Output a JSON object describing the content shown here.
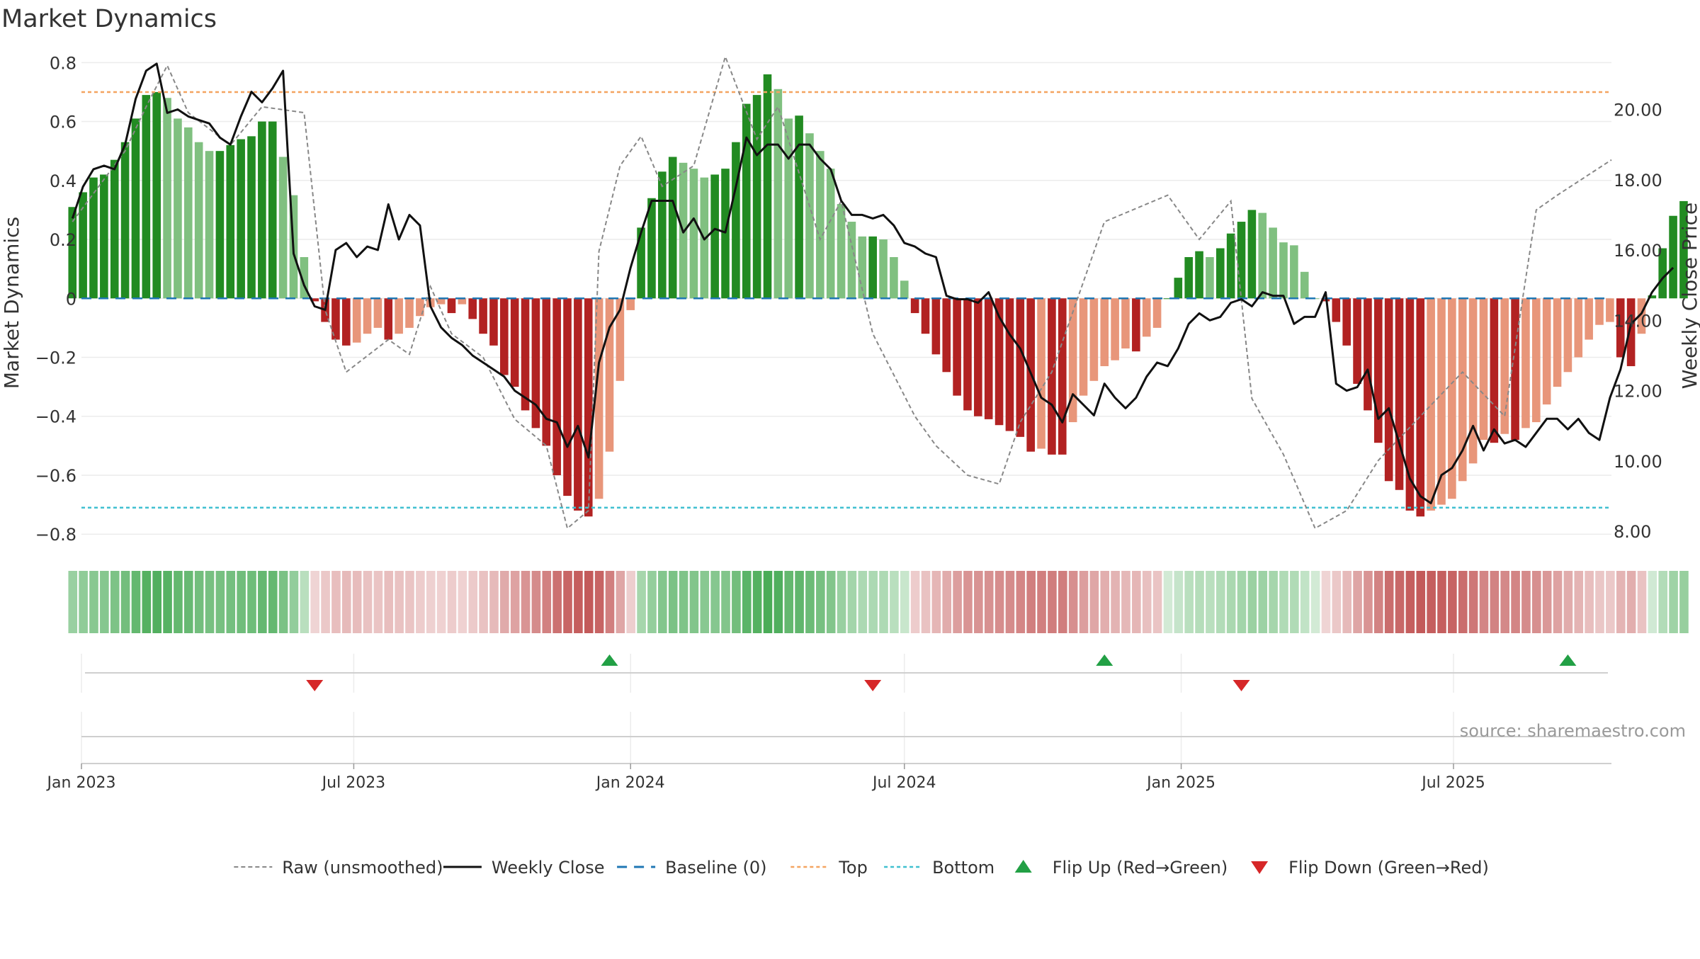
{
  "chart_data": {
    "type": "bar",
    "title": "Market Dynamics",
    "ylabel_left": "Market Dynamics",
    "ylabel_right": "Weekly Close Price",
    "ylim_left": [
      -0.85,
      0.82
    ],
    "ylim_right": [
      7.5,
      21.5
    ],
    "left_ticks": [
      {
        "value": 0.8,
        "label": "0.8"
      },
      {
        "value": 0.6,
        "label": "0.6"
      },
      {
        "value": 0.4,
        "label": "0.4"
      },
      {
        "value": 0.2,
        "label": "0.2"
      },
      {
        "value": 0,
        "label": "0"
      },
      {
        "value": -0.2,
        "label": "−0.2"
      },
      {
        "value": -0.4,
        "label": "−0.4"
      },
      {
        "value": -0.6,
        "label": "−0.6"
      },
      {
        "value": -0.8,
        "label": "−0.8"
      }
    ],
    "right_ticks": [
      {
        "value": 20,
        "label": "20.00"
      },
      {
        "value": 18,
        "label": "18.00"
      },
      {
        "value": 16,
        "label": "16.00"
      },
      {
        "value": 14,
        "label": "14.00"
      },
      {
        "value": 12,
        "label": "12.00"
      },
      {
        "value": 10,
        "label": "10.00"
      },
      {
        "value": 8,
        "label": "8.00"
      }
    ],
    "x_start": "2023-01-01",
    "x_end": "2025-10-14",
    "x_ticks": [
      {
        "date": "2023-01-01",
        "label": "Jan 2023"
      },
      {
        "date": "2023-07-01",
        "label": "Jul 2023"
      },
      {
        "date": "2024-01-01",
        "label": "Jan 2024"
      },
      {
        "date": "2024-07-01",
        "label": "Jul 2024"
      },
      {
        "date": "2025-01-01",
        "label": "Jan 2025"
      },
      {
        "date": "2025-07-01",
        "label": "Jul 2025"
      }
    ],
    "first_week": "2022-12-26",
    "top_threshold": 0.7,
    "bottom_threshold": -0.71,
    "baseline": 0,
    "bars": [
      0.31,
      0.36,
      0.41,
      0.42,
      0.47,
      0.53,
      0.61,
      0.69,
      0.7,
      0.68,
      0.61,
      0.58,
      0.53,
      0.5,
      0.5,
      0.52,
      0.54,
      0.55,
      0.6,
      0.6,
      0.48,
      0.35,
      0.14,
      -0.01,
      -0.08,
      -0.14,
      -0.16,
      -0.15,
      -0.12,
      -0.1,
      -0.14,
      -0.12,
      -0.1,
      -0.06,
      -0.03,
      -0.02,
      -0.05,
      -0.02,
      -0.07,
      -0.12,
      -0.16,
      -0.26,
      -0.3,
      -0.38,
      -0.44,
      -0.5,
      -0.6,
      -0.67,
      -0.72,
      -0.74,
      -0.68,
      -0.52,
      -0.28,
      -0.04,
      0.24,
      0.34,
      0.43,
      0.48,
      0.46,
      0.44,
      0.41,
      0.42,
      0.44,
      0.53,
      0.66,
      0.69,
      0.76,
      0.71,
      0.61,
      0.62,
      0.56,
      0.5,
      0.44,
      0.32,
      0.26,
      0.21,
      0.21,
      0.2,
      0.14,
      0.06,
      -0.05,
      -0.12,
      -0.19,
      -0.25,
      -0.33,
      -0.38,
      -0.4,
      -0.41,
      -0.43,
      -0.45,
      -0.47,
      -0.52,
      -0.51,
      -0.53,
      -0.53,
      -0.42,
      -0.33,
      -0.28,
      -0.23,
      -0.21,
      -0.17,
      -0.18,
      -0.13,
      -0.1,
      -0.0,
      0.07,
      0.14,
      0.16,
      0.14,
      0.17,
      0.22,
      0.26,
      0.3,
      0.29,
      0.24,
      0.19,
      0.18,
      0.09,
      0.0,
      -0.01,
      -0.08,
      -0.16,
      -0.29,
      -0.38,
      -0.49,
      -0.62,
      -0.65,
      -0.72,
      -0.74,
      -0.72,
      -0.7,
      -0.68,
      -0.62,
      -0.56,
      -0.48,
      -0.49,
      -0.46,
      -0.48,
      -0.44,
      -0.42,
      -0.36,
      -0.3,
      -0.25,
      -0.2,
      -0.14,
      -0.09,
      -0.08,
      -0.2,
      -0.23,
      -0.12,
      0.01,
      0.17,
      0.28,
      0.33
    ],
    "close": [
      16.9,
      17.8,
      18.3,
      18.4,
      18.3,
      19.0,
      20.3,
      21.1,
      21.3,
      19.9,
      20.0,
      19.8,
      19.7,
      19.6,
      19.2,
      19.0,
      19.8,
      20.5,
      20.2,
      20.6,
      21.1,
      15.9,
      15.0,
      14.4,
      14.3,
      16.0,
      16.2,
      15.8,
      16.1,
      16.0,
      17.3,
      16.3,
      17.0,
      16.7,
      14.4,
      13.8,
      13.5,
      13.3,
      13.0,
      12.8,
      12.6,
      12.4,
      12.0,
      11.8,
      11.6,
      11.2,
      11.1,
      10.4,
      11.0,
      10.1,
      12.8,
      13.8,
      14.3,
      15.5,
      16.5,
      17.4,
      17.4,
      17.4,
      16.5,
      16.9,
      16.3,
      16.6,
      16.5,
      17.8,
      19.2,
      18.7,
      19.0,
      19.0,
      18.6,
      19.0,
      19.0,
      18.6,
      18.3,
      17.4,
      17.0,
      17.0,
      16.9,
      17.0,
      16.7,
      16.2,
      16.1,
      15.9,
      15.8,
      14.7,
      14.6,
      14.6,
      14.5,
      14.8,
      14.1,
      13.6,
      13.2,
      12.5,
      11.8,
      11.6,
      11.1,
      11.9,
      11.6,
      11.3,
      12.2,
      11.8,
      11.5,
      11.8,
      12.4,
      12.8,
      12.7,
      13.2,
      13.9,
      14.2,
      14.0,
      14.1,
      14.5,
      14.6,
      14.4,
      14.8,
      14.7,
      14.7,
      13.9,
      14.1,
      14.1,
      14.8,
      12.2,
      12.0,
      12.1,
      12.6,
      11.2,
      11.5,
      10.5,
      9.5,
      9.0,
      8.8,
      9.6,
      9.8,
      10.3,
      11.0,
      10.3,
      10.9,
      10.5,
      10.6,
      10.4,
      10.8,
      11.2,
      11.2,
      10.9,
      11.2,
      10.8,
      10.6,
      11.8,
      12.6,
      13.9,
      14.2,
      14.8,
      15.2,
      15.5
    ],
    "raw_points": [
      {
        "date": "2022-12-26",
        "value": 0.26
      },
      {
        "date": "2023-01-30",
        "value": 0.5
      },
      {
        "date": "2023-02-13",
        "value": 0.65
      },
      {
        "date": "2023-02-27",
        "value": 0.79
      },
      {
        "date": "2023-03-13",
        "value": 0.63
      },
      {
        "date": "2023-04-10",
        "value": 0.52
      },
      {
        "date": "2023-05-01",
        "value": 0.65
      },
      {
        "date": "2023-05-29",
        "value": 0.63
      },
      {
        "date": "2023-06-12",
        "value": -0.04
      },
      {
        "date": "2023-06-26",
        "value": -0.25
      },
      {
        "date": "2023-07-24",
        "value": -0.14
      },
      {
        "date": "2023-08-07",
        "value": -0.19
      },
      {
        "date": "2023-08-21",
        "value": 0.04
      },
      {
        "date": "2023-09-04",
        "value": -0.12
      },
      {
        "date": "2023-09-25",
        "value": -0.2
      },
      {
        "date": "2023-10-16",
        "value": -0.41
      },
      {
        "date": "2023-11-06",
        "value": -0.5
      },
      {
        "date": "2023-11-20",
        "value": -0.78
      },
      {
        "date": "2023-12-04",
        "value": -0.72
      },
      {
        "date": "2023-12-11",
        "value": 0.16
      },
      {
        "date": "2023-12-25",
        "value": 0.45
      },
      {
        "date": "2024-01-08",
        "value": 0.55
      },
      {
        "date": "2024-01-22",
        "value": 0.38
      },
      {
        "date": "2024-02-12",
        "value": 0.45
      },
      {
        "date": "2024-03-04",
        "value": 0.82
      },
      {
        "date": "2024-03-25",
        "value": 0.54
      },
      {
        "date": "2024-04-08",
        "value": 0.65
      },
      {
        "date": "2024-05-06",
        "value": 0.2
      },
      {
        "date": "2024-05-20",
        "value": 0.33
      },
      {
        "date": "2024-06-10",
        "value": -0.12
      },
      {
        "date": "2024-07-08",
        "value": -0.4
      },
      {
        "date": "2024-07-22",
        "value": -0.5
      },
      {
        "date": "2024-08-12",
        "value": -0.6
      },
      {
        "date": "2024-09-02",
        "value": -0.63
      },
      {
        "date": "2024-09-16",
        "value": -0.42
      },
      {
        "date": "2024-10-07",
        "value": -0.25
      },
      {
        "date": "2024-11-11",
        "value": 0.26
      },
      {
        "date": "2024-12-09",
        "value": 0.32
      },
      {
        "date": "2024-12-23",
        "value": 0.35
      },
      {
        "date": "2025-01-13",
        "value": 0.2
      },
      {
        "date": "2025-02-03",
        "value": 0.33
      },
      {
        "date": "2025-02-17",
        "value": -0.34
      },
      {
        "date": "2025-03-10",
        "value": -0.53
      },
      {
        "date": "2025-03-31",
        "value": -0.78
      },
      {
        "date": "2025-04-21",
        "value": -0.72
      },
      {
        "date": "2025-05-12",
        "value": -0.55
      },
      {
        "date": "2025-06-09",
        "value": -0.4
      },
      {
        "date": "2025-07-07",
        "value": -0.25
      },
      {
        "date": "2025-08-04",
        "value": -0.4
      },
      {
        "date": "2025-08-25",
        "value": 0.3
      },
      {
        "date": "2025-09-08",
        "value": 0.35
      },
      {
        "date": "2025-10-14",
        "value": 0.47
      }
    ],
    "flip_up": [
      "2023-12-18",
      "2024-11-11",
      "2025-09-15"
    ],
    "flip_down": [
      "2023-06-05",
      "2024-06-10",
      "2025-02-10"
    ],
    "source_note": "source: sharemaestro.com",
    "legend": [
      {
        "key": "raw",
        "label": "Raw (unsmoothed)"
      },
      {
        "key": "close",
        "label": "Weekly Close"
      },
      {
        "key": "baseline",
        "label": "Baseline (0)"
      },
      {
        "key": "top",
        "label": "Top"
      },
      {
        "key": "bottom",
        "label": "Bottom"
      },
      {
        "key": "flip_up",
        "label": "Flip Up (Red→Green)"
      },
      {
        "key": "flip_down",
        "label": "Flip Down (Green→Red)"
      }
    ],
    "legend_position": "bottom",
    "grid": true
  },
  "colors": {
    "pos_strong": "#228b22",
    "pos_weak": "#80c080",
    "neg_strong": "#b22222",
    "neg_weak": "#e8967a",
    "close": "#111111",
    "raw": "#888888",
    "baseline": "#1f77b4",
    "top": "#f4a460",
    "bottom": "#40c0d0",
    "flip_up": "#22a045",
    "flip_down": "#d62728"
  }
}
